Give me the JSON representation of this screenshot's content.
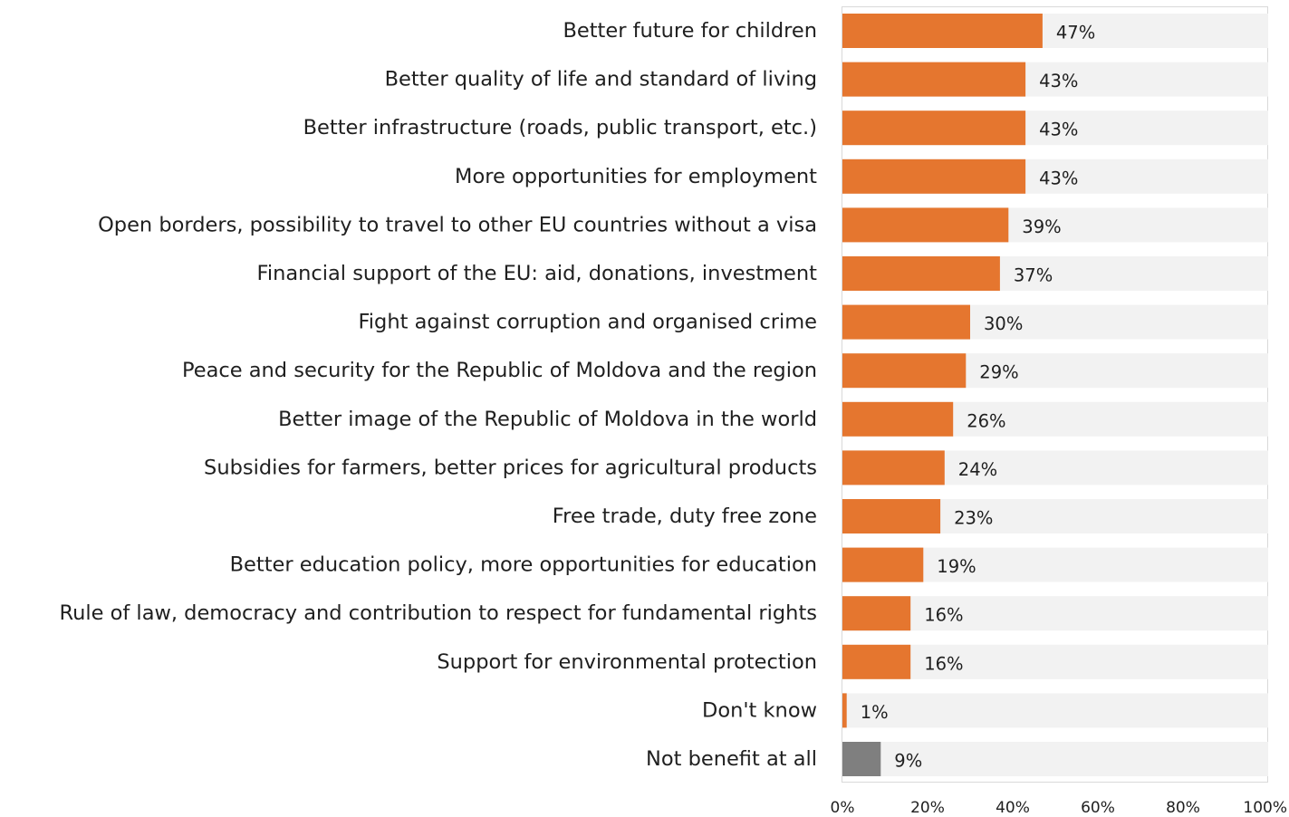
{
  "chart_data": {
    "type": "bar",
    "orientation": "horizontal",
    "categories": [
      "Better future for children",
      "Better quality of life and standard of living",
      "Better infrastructure (roads, public transport, etc.)",
      "More opportunities for employment",
      "Open borders, possibility to travel to other EU countries without a visa",
      "Financial support of the EU: aid, donations, investment",
      "Fight against corruption and organised crime",
      "Peace and security for the Republic of Moldova and the region",
      "Better image of the Republic of Moldova in the world",
      "Subsidies for farmers, better prices for agricultural products",
      "Free trade, duty free zone",
      "Better education policy, more opportunities for education",
      "Rule of law, democracy and contribution to respect for fundamental rights",
      "Support for environmental protection",
      "Don't know",
      "Not benefit at all"
    ],
    "values": [
      47,
      43,
      43,
      43,
      39,
      37,
      30,
      29,
      26,
      24,
      23,
      19,
      16,
      16,
      1,
      9
    ],
    "value_labels": [
      "47%",
      "43%",
      "43%",
      "43%",
      "39%",
      "37%",
      "30%",
      "29%",
      "26%",
      "24%",
      "23%",
      "19%",
      "16%",
      "16%",
      "1%",
      "9%"
    ],
    "bar_colors": [
      "#e5762f",
      "#e5762f",
      "#e5762f",
      "#e5762f",
      "#e5762f",
      "#e5762f",
      "#e5762f",
      "#e5762f",
      "#e5762f",
      "#e5762f",
      "#e5762f",
      "#e5762f",
      "#e5762f",
      "#e5762f",
      "#e5762f",
      "#7f7f7f"
    ],
    "track_color": "#f2f2f2",
    "xlim": [
      0,
      100
    ],
    "xticks": [
      0,
      20,
      40,
      60,
      80,
      100
    ],
    "xtick_labels": [
      "0%",
      "20%",
      "40%",
      "60%",
      "80%",
      "100%"
    ],
    "title": "",
    "xlabel": "",
    "ylabel": "",
    "grid": false,
    "legend": "none"
  }
}
